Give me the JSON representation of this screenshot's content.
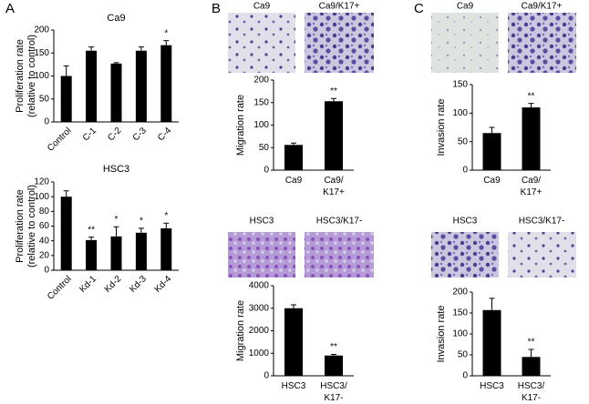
{
  "panel_labels": [
    "A",
    "B",
    "C"
  ],
  "micrographs": [
    {
      "labels": [
        "Ca9",
        "Ca9/K17+"
      ]
    },
    {
      "labels": [
        "HSC3",
        "HSC3/K17-"
      ]
    },
    {
      "labels": [
        "Ca9",
        "Ca9/K17+"
      ]
    },
    {
      "labels": [
        "HSC3",
        "HSC3/K17-"
      ]
    }
  ],
  "chart_data": [
    {
      "type": "bar",
      "title": "Ca9",
      "y_label": [
        "Proliferation rate",
        "(relative to control)"
      ],
      "categories": [
        "Control",
        "C-1",
        "C-2",
        "C-3",
        "C-4"
      ],
      "values": [
        100,
        155,
        127,
        155,
        167
      ],
      "errors": [
        22,
        8,
        2,
        8,
        10
      ],
      "annotations": [
        null,
        null,
        null,
        null,
        "*"
      ],
      "color": "#000000",
      "ylim": [
        0,
        200
      ],
      "yticks": [
        0,
        50,
        100,
        150,
        200
      ]
    },
    {
      "type": "bar",
      "title": "HSC3",
      "y_label": [
        "Proliferation rate",
        "(relative to control)"
      ],
      "categories": [
        "Control",
        "Kd-1",
        "Kd-2",
        "Kd-3",
        "Kd-4"
      ],
      "values": [
        100,
        41,
        46,
        51,
        57
      ],
      "errors": [
        8,
        4,
        13,
        6,
        7
      ],
      "annotations": [
        null,
        "**",
        "*",
        "*",
        "*"
      ],
      "color": "#000000",
      "ylim": [
        0,
        120
      ],
      "yticks": [
        0,
        20,
        40,
        60,
        80,
        100,
        120
      ]
    },
    {
      "type": "bar",
      "y_label": [
        "Migration rate"
      ],
      "categories": [
        "Ca9",
        "Ca9/\nK17+"
      ],
      "values": [
        56,
        153
      ],
      "errors": [
        4,
        6
      ],
      "annotations": [
        null,
        "**"
      ],
      "color": "#000000",
      "ylim": [
        0,
        200
      ],
      "yticks": [
        0,
        50,
        100,
        150,
        200
      ]
    },
    {
      "type": "bar",
      "y_label": [
        "Migration rate"
      ],
      "categories": [
        "HSC3",
        "HSC3/\nK17-"
      ],
      "values": [
        3000,
        900
      ],
      "errors": [
        150,
        50
      ],
      "annotations": [
        null,
        "**"
      ],
      "color": "#000000",
      "ylim": [
        0,
        4000
      ],
      "yticks": [
        0,
        1000,
        2000,
        3000,
        4000
      ]
    },
    {
      "type": "bar",
      "y_label": [
        "Invasion rate"
      ],
      "categories": [
        "Ca9",
        "Ca9/\nK17+"
      ],
      "values": [
        65,
        110
      ],
      "errors": [
        10,
        7
      ],
      "annotations": [
        null,
        "**"
      ],
      "color": "#000000",
      "ylim": [
        0,
        150
      ],
      "yticks": [
        0,
        50,
        100,
        150
      ]
    },
    {
      "type": "bar",
      "y_label": [
        "Invasion rate"
      ],
      "categories": [
        "HSC3",
        "HSC3/\nK17-"
      ],
      "values": [
        157,
        45
      ],
      "errors": [
        28,
        18
      ],
      "annotations": [
        null,
        "**"
      ],
      "color": "#000000",
      "ylim": [
        0,
        200
      ],
      "yticks": [
        0,
        50,
        100,
        150,
        200
      ]
    }
  ]
}
